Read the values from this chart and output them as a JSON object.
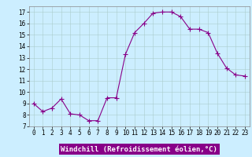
{
  "x": [
    0,
    1,
    2,
    3,
    4,
    5,
    6,
    7,
    8,
    9,
    10,
    11,
    12,
    13,
    14,
    15,
    16,
    17,
    18,
    19,
    20,
    21,
    22,
    23
  ],
  "y": [
    9.0,
    8.3,
    8.6,
    9.4,
    8.1,
    8.0,
    7.5,
    7.5,
    9.5,
    9.5,
    13.3,
    15.2,
    16.0,
    16.9,
    17.0,
    17.0,
    16.6,
    15.5,
    15.5,
    15.2,
    13.4,
    12.1,
    11.5,
    11.4
  ],
  "line_color": "#880088",
  "marker": "+",
  "marker_size": 4,
  "marker_color": "#880088",
  "bg_color": "#cceeff",
  "grid_color": "#aacccc",
  "xlabel": "Windchill (Refroidissement éolien,°C)",
  "xlabel_bg": "#880088",
  "xlabel_color": "#ffffff",
  "ylim": [
    7,
    17.5
  ],
  "yticks": [
    7,
    8,
    9,
    10,
    11,
    12,
    13,
    14,
    15,
    16,
    17
  ],
  "xlim": [
    -0.5,
    23.5
  ],
  "xticks": [
    0,
    1,
    2,
    3,
    4,
    5,
    6,
    7,
    8,
    9,
    10,
    11,
    12,
    13,
    14,
    15,
    16,
    17,
    18,
    19,
    20,
    21,
    22,
    23
  ],
  "tick_fontsize": 5.5,
  "ylabel_fontsize": 5.5,
  "xlabel_fontsize": 6.5,
  "linewidth": 0.8
}
